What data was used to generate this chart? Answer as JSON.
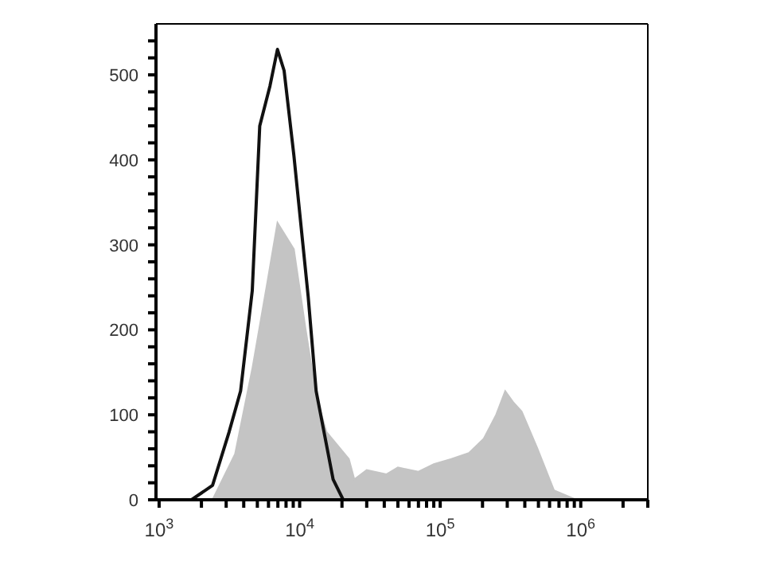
{
  "chart_data": {
    "type": "area",
    "log": "x",
    "grid": false,
    "legend": false,
    "marker": "none",
    "xlim": [
      950,
      3000000
    ],
    "xticks": [
      {
        "value": 1000,
        "label": "10$^{3}$"
      },
      {
        "value": 2000,
        "label": null
      },
      {
        "value": 3000,
        "label": null
      },
      {
        "value": 4000,
        "label": null
      },
      {
        "value": 5000,
        "label": null
      },
      {
        "value": 6000,
        "label": null
      },
      {
        "value": 7000,
        "label": null
      },
      {
        "value": 8000,
        "label": null
      },
      {
        "value": 9000,
        "label": null
      },
      {
        "value": 10000,
        "label": "10$^{4}$"
      },
      {
        "value": 20000,
        "label": null
      },
      {
        "value": 30000,
        "label": null
      },
      {
        "value": 40000,
        "label": null
      },
      {
        "value": 50000,
        "label": null
      },
      {
        "value": 60000,
        "label": null
      },
      {
        "value": 70000,
        "label": null
      },
      {
        "value": 80000,
        "label": null
      },
      {
        "value": 90000,
        "label": null
      },
      {
        "value": 100000,
        "label": "10$^{5}$"
      },
      {
        "value": 200000,
        "label": null
      },
      {
        "value": 300000,
        "label": null
      },
      {
        "value": 400000,
        "label": null
      },
      {
        "value": 500000,
        "label": null
      },
      {
        "value": 600000,
        "label": null
      },
      {
        "value": 700000,
        "label": null
      },
      {
        "value": 800000,
        "label": null
      },
      {
        "value": 900000,
        "label": null
      },
      {
        "value": 1000000,
        "label": "10$^{6}$"
      },
      {
        "value": 2000000,
        "label": null
      },
      {
        "value": 3000000,
        "label": null
      }
    ],
    "ylim": [
      0,
      560
    ],
    "yticks": [
      0,
      {
        "value": 20,
        "label": null
      },
      {
        "value": 40,
        "label": null
      },
      {
        "value": 60,
        "label": null
      },
      {
        "value": 80,
        "label": null
      },
      100,
      {
        "value": 120,
        "label": null
      },
      {
        "value": 140,
        "label": null
      },
      {
        "value": 160,
        "label": null
      },
      {
        "value": 180,
        "label": null
      },
      200,
      {
        "value": 220,
        "label": null
      },
      {
        "value": 240,
        "label": null
      },
      {
        "value": 260,
        "label": null
      },
      {
        "value": 280,
        "label": null
      },
      300,
      {
        "value": 320,
        "label": null
      },
      {
        "value": 340,
        "label": null
      },
      {
        "value": 360,
        "label": null
      },
      {
        "value": 380,
        "label": null
      },
      400,
      {
        "value": 420,
        "label": null
      },
      {
        "value": 440,
        "label": null
      },
      {
        "value": 460,
        "label": null
      },
      {
        "value": 480,
        "label": null
      },
      500,
      {
        "value": 520,
        "label": null
      },
      {
        "value": 540,
        "label": null
      }
    ],
    "series": [
      {
        "color": "#c4c4c4",
        "x": [
          2400,
          3470,
          4600,
          5900,
          6950,
          9100,
          11000,
          13100,
          15500,
          22400,
          24500,
          30000,
          41500,
          50000,
          70000,
          90000,
          120000,
          160000,
          204000,
          250000,
          290000,
          330000,
          380000,
          490000,
          646000,
          930000
        ],
        "values": [
          0,
          54,
          154,
          257,
          326,
          295,
          202,
          122,
          80,
          48,
          24,
          35,
          30,
          38,
          33,
          42,
          48,
          55,
          72,
          100,
          128,
          115,
          104,
          61,
          11,
          0
        ]
      },
      {
        "type": "line",
        "color": "#111111",
        "x": [
          1700,
          2400,
          3150,
          3800,
          4600,
          5200,
          6150,
          6950,
          7750,
          9100,
          11500,
          13100,
          17300,
          20400,
          22400
        ],
        "values": [
          0,
          17,
          80,
          128,
          246,
          440,
          487,
          530,
          505,
          405,
          239,
          128,
          24,
          0,
          0
        ]
      }
    ]
  }
}
